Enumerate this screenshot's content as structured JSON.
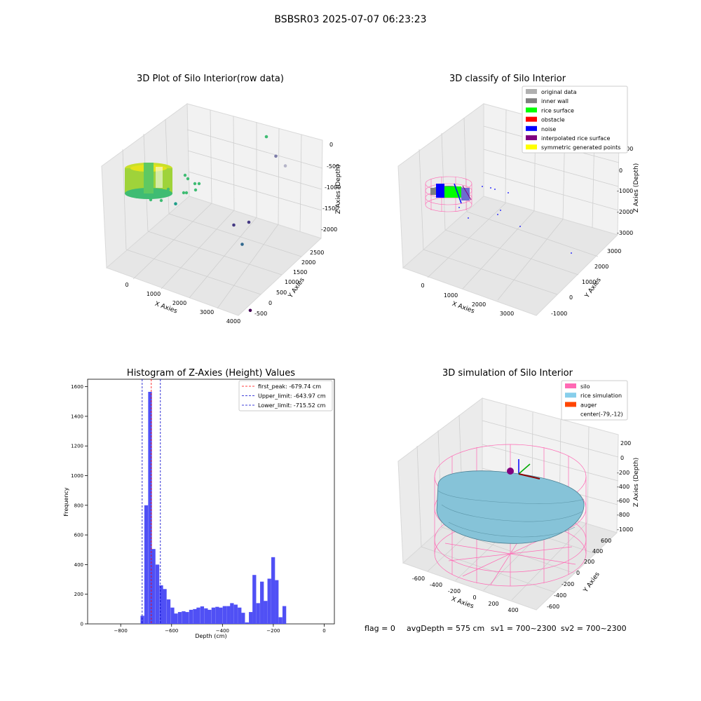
{
  "figure": {
    "suptitle": "BSBSR03 2025-07-07 06:23:23",
    "footer": {
      "flag": "flag = 0",
      "avg_depth": "avgDepth = 575 cm",
      "sv1": "sv1 = 700~2300",
      "sv2": "sv2 = 700~2300"
    }
  },
  "chart_data": [
    {
      "type": "scatter3d",
      "title": "3D Plot of Silo Interior(row data)",
      "xlabel": "X Axies",
      "ylabel": "Y Axies",
      "zlabel": "Z Axies (Depth)",
      "x_ticks": [
        "0",
        "1000",
        "2000",
        "3000",
        "4000"
      ],
      "y_ticks": [
        "-500",
        "0",
        "500",
        "1000",
        "1500",
        "2000",
        "2500"
      ],
      "z_ticks": [
        "0",
        "-500",
        "-1000",
        "-1500",
        "-2000"
      ],
      "colors": {
        "high": "#d8e219",
        "mid": "#3fbc73",
        "low": "#440154"
      },
      "points": [
        {
          "x": 3900,
          "y": -200,
          "z": -2100,
          "color": "#440154"
        },
        {
          "x": 2500,
          "y": 700,
          "z": -1700,
          "color": "#31688e"
        },
        {
          "x": 2000,
          "y": 900,
          "z": -1550,
          "color": "#443983"
        },
        {
          "x": 2300,
          "y": 1000,
          "z": -1520,
          "color": "#443983"
        },
        {
          "x": 2300,
          "y": 1800,
          "z": -1000,
          "color": "#b5b5c8"
        },
        {
          "x": 1900,
          "y": 1900,
          "z": -950,
          "color": "#7c7ca8"
        },
        {
          "x": 1500,
          "y": 2000,
          "z": -700,
          "color": "#3fbc73"
        },
        {
          "x": 600,
          "y": 700,
          "z": -1200,
          "color": "#1f9e89"
        }
      ]
    },
    {
      "type": "scatter3d",
      "title": "3D classify of Silo Interior",
      "xlabel": "X Axies",
      "ylabel": "Y Axies",
      "zlabel": "Z Axies (Depth)",
      "x_ticks": [
        "0",
        "1000",
        "2000",
        "3000"
      ],
      "y_ticks": [
        "-1000",
        "0",
        "1000",
        "2000",
        "3000"
      ],
      "z_ticks": [
        "1000",
        "0",
        "-1000",
        "-2000",
        "-3000"
      ],
      "legend_position": "top-right",
      "legend": [
        {
          "label": "original data",
          "color": "#b0b0b0"
        },
        {
          "label": "inner wall",
          "color": "#808080"
        },
        {
          "label": "rice surface",
          "color": "#00ff00"
        },
        {
          "label": "obstacle",
          "color": "#ff0000"
        },
        {
          "label": "noise",
          "color": "#0000ff"
        },
        {
          "label": "interpolated rice surface",
          "color": "#800080"
        },
        {
          "label": "symmetric generated points",
          "color": "#ffff00"
        }
      ]
    },
    {
      "type": "bar",
      "title": "Histogram of Z-Axies (Height) Values",
      "xlabel": "Depth (cm)",
      "ylabel": "Frequency",
      "xlim": [
        -930,
        40
      ],
      "ylim": [
        0,
        1650
      ],
      "x_ticks": [
        -800,
        -600,
        -400,
        -200,
        0
      ],
      "y_ticks": [
        0,
        200,
        400,
        600,
        800,
        1000,
        1200,
        1400,
        1600
      ],
      "bar_color": "#5050f5",
      "bin_width": 14.6,
      "bins": [
        {
          "x": -722,
          "value": 55
        },
        {
          "x": -707,
          "value": 800
        },
        {
          "x": -692,
          "value": 1565
        },
        {
          "x": -678,
          "value": 505
        },
        {
          "x": -663,
          "value": 400
        },
        {
          "x": -648,
          "value": 260
        },
        {
          "x": -634,
          "value": 235
        },
        {
          "x": -619,
          "value": 165
        },
        {
          "x": -604,
          "value": 110
        },
        {
          "x": -590,
          "value": 70
        },
        {
          "x": -575,
          "value": 80
        },
        {
          "x": -560,
          "value": 85
        },
        {
          "x": -546,
          "value": 80
        },
        {
          "x": -531,
          "value": 95
        },
        {
          "x": -516,
          "value": 100
        },
        {
          "x": -502,
          "value": 110
        },
        {
          "x": -487,
          "value": 118
        },
        {
          "x": -472,
          "value": 105
        },
        {
          "x": -458,
          "value": 95
        },
        {
          "x": -443,
          "value": 110
        },
        {
          "x": -428,
          "value": 115
        },
        {
          "x": -414,
          "value": 110
        },
        {
          "x": -399,
          "value": 120
        },
        {
          "x": -384,
          "value": 120
        },
        {
          "x": -370,
          "value": 140
        },
        {
          "x": -355,
          "value": 130
        },
        {
          "x": -340,
          "value": 110
        },
        {
          "x": -326,
          "value": 75
        },
        {
          "x": -311,
          "value": 10
        },
        {
          "x": -296,
          "value": 80
        },
        {
          "x": -282,
          "value": 330
        },
        {
          "x": -267,
          "value": 140
        },
        {
          "x": -252,
          "value": 285
        },
        {
          "x": -238,
          "value": 155
        },
        {
          "x": -223,
          "value": 305
        },
        {
          "x": -208,
          "value": 450
        },
        {
          "x": -194,
          "value": 295
        },
        {
          "x": -179,
          "value": 45
        },
        {
          "x": -164,
          "value": 120
        }
      ],
      "vlines": [
        {
          "label": "first_peak: -679.74 cm",
          "x": -679.74,
          "color": "#ff0000"
        },
        {
          "label": "Upper_limit: -643.97 cm",
          "x": -643.97,
          "color": "#0000cc"
        },
        {
          "label": "Lower_limit: -715.52 cm",
          "x": -715.52,
          "color": "#0000cc"
        }
      ],
      "legend_position": "top-right"
    },
    {
      "type": "surface3d",
      "title": "3D simulation of Silo Interior",
      "xlabel": "X Axies",
      "ylabel": "Y Axies",
      "zlabel": "Z Axies (Depth)",
      "x_ticks": [
        "-600",
        "-400",
        "-200",
        "0",
        "200",
        "400"
      ],
      "y_ticks": [
        "-600",
        "-400",
        "-200",
        "0",
        "200",
        "400",
        "600"
      ],
      "z_ticks": [
        "200",
        "0",
        "-200",
        "-400",
        "-600",
        "-800",
        "-1000"
      ],
      "legend_position": "top-right",
      "legend": [
        {
          "label": "silo",
          "color": "#ff69b4"
        },
        {
          "label": "rice simulation",
          "color": "#87ceeb"
        },
        {
          "label": "auger",
          "color": "#ff4500"
        },
        {
          "label": "center(-79,-12)",
          "color": "none"
        }
      ]
    }
  ]
}
